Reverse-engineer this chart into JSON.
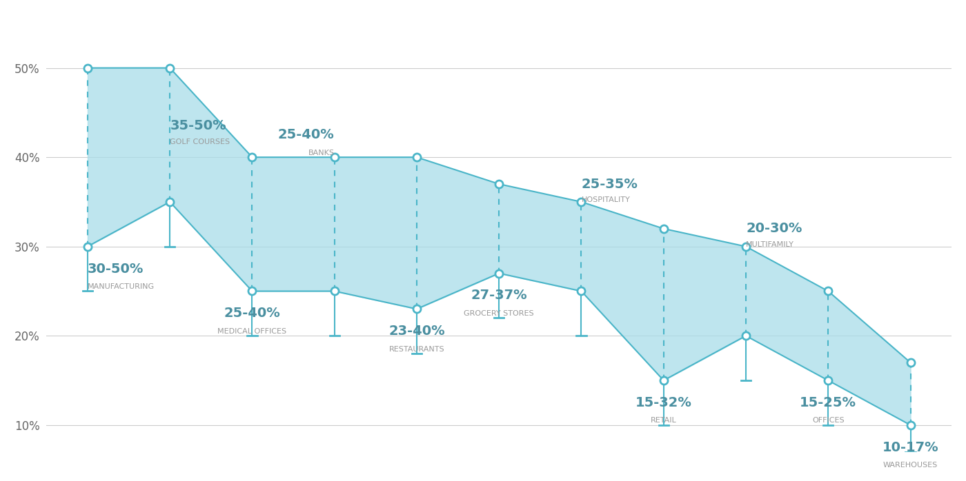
{
  "categories": [
    "Manufacturing",
    "Golf Courses",
    "Medical Offices",
    "Banks",
    "Restaurants",
    "Grocery Stores",
    "Hospitality",
    "Retail",
    "Multifamily",
    "Offices",
    "Warehouses"
  ],
  "labels_top": [
    "30-50%\nMANUFACTURING",
    "35-50%\nGOLF COURSES",
    "25-40%\nMEDICAL OFFICES",
    "25-40%\nBANKS",
    "23-40%\nRESTAURANTS",
    "27-37%\nGROCERY STORES",
    "25-35%\nHOSPITALITY",
    "15-32%\nRETAIL",
    "20-30%\nMULTIFAMILY",
    "15-25%\nOFFICES",
    "10-17%\nWAREHOUSES"
  ],
  "high_values": [
    50,
    50,
    40,
    40,
    40,
    37,
    35,
    32,
    30,
    25,
    17
  ],
  "low_values": [
    30,
    35,
    25,
    25,
    23,
    27,
    25,
    15,
    20,
    15,
    10
  ],
  "fill_color": "#a8dde9",
  "fill_alpha": 0.75,
  "line_color": "#4ab5c8",
  "dashed_color": "#4ab5c8",
  "dot_color": "#ffffff",
  "dot_edge_color": "#4ab5c8",
  "solid_line_color": "#4ab5c8",
  "label_color_pct": "#4a8fa0",
  "label_color_name": "#999999",
  "yticks": [
    10,
    20,
    30,
    40,
    50
  ],
  "ylim": [
    7,
    56
  ],
  "background_color": "#ffffff",
  "label_fontsize_pct": 13,
  "label_fontsize_name": 8,
  "grid_color": "#cccccc"
}
